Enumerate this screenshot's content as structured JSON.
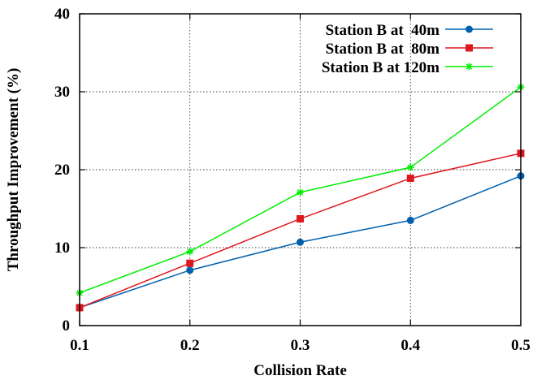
{
  "chart_data": {
    "type": "line",
    "title": "",
    "xlabel": "Collision Rate",
    "ylabel": "Throughput Improvement (%)",
    "x": [
      0.1,
      0.2,
      0.3,
      0.4,
      0.5
    ],
    "xlim": [
      0.1,
      0.5
    ],
    "ylim": [
      0,
      40
    ],
    "x_ticks": [
      "0.1",
      "0.2",
      "0.3",
      "0.4",
      "0.5"
    ],
    "y_ticks": [
      "0",
      "10",
      "20",
      "30",
      "40"
    ],
    "grid": true,
    "legend_position": "top-right",
    "series": [
      {
        "name": "Station B at  40m",
        "color": "#0060ad",
        "marker": "circle",
        "values": [
          2.3,
          7.1,
          10.7,
          13.5,
          19.2
        ]
      },
      {
        "name": "Station B at  80m",
        "color": "#dd181f",
        "marker": "square",
        "values": [
          2.3,
          8.0,
          13.7,
          18.9,
          22.1
        ]
      },
      {
        "name": "Station B at 120m",
        "color": "#00ee00",
        "marker": "asterisk",
        "values": [
          4.2,
          9.5,
          17.1,
          20.3,
          30.6
        ]
      }
    ]
  }
}
